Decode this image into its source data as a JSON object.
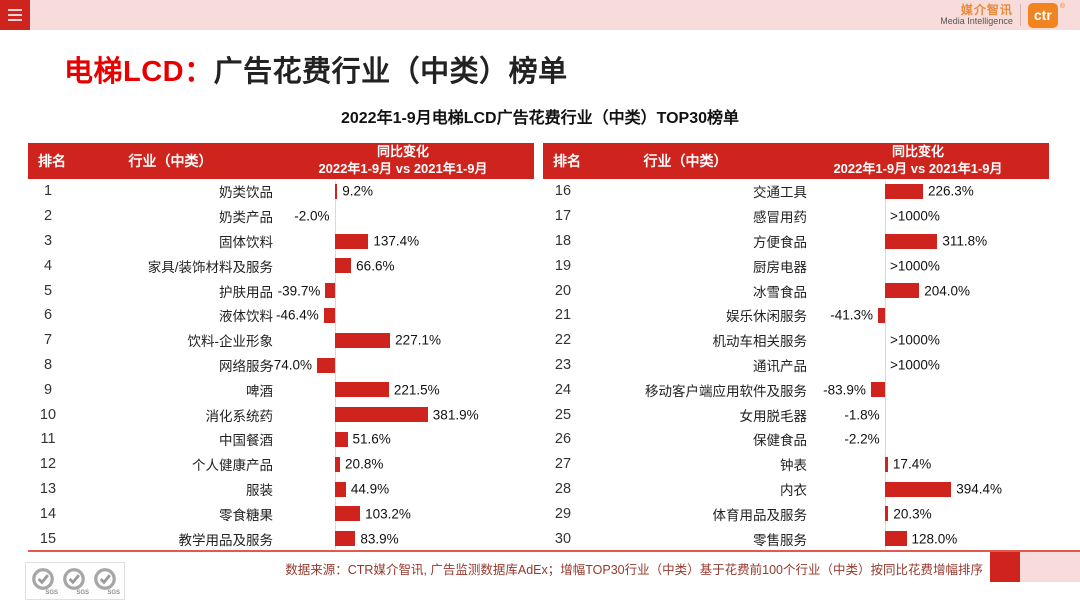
{
  "top_bar": {
    "brand_cn": "媒介智讯",
    "brand_en": "Media Intelligence",
    "brand_badge": "ctr",
    "registered": "®"
  },
  "title": {
    "highlight": "电梯LCD：",
    "main": "广告花费行业（中类）榜单"
  },
  "subtitle": "2022年1-9月电梯LCD广告花费行业（中类）TOP30榜单",
  "table_headers": {
    "rank": "排名",
    "industry": "行业（中类）",
    "change_title": "同比变化",
    "change_period": "2022年1-9月 vs 2021年1-9月"
  },
  "table": {
    "left_rows": [
      {
        "rank": "1",
        "industry": "奶类饮品",
        "label": "9.2%",
        "value": 9.2
      },
      {
        "rank": "2",
        "industry": "奶类产品",
        "label": "-2.0%",
        "value": -2.0
      },
      {
        "rank": "3",
        "industry": "固体饮料",
        "label": "137.4%",
        "value": 137.4
      },
      {
        "rank": "4",
        "industry": "家具/装饰材料及服务",
        "label": "66.6%",
        "value": 66.6
      },
      {
        "rank": "5",
        "industry": "护肤用品",
        "label": "-39.7%",
        "value": -39.7
      },
      {
        "rank": "6",
        "industry": "液体饮料",
        "label": "-46.4%",
        "value": -46.4
      },
      {
        "rank": "7",
        "industry": "饮料-企业形象",
        "label": "227.1%",
        "value": 227.1
      },
      {
        "rank": "8",
        "industry": "网络服务",
        "label": "-74.0%",
        "value": -74.0
      },
      {
        "rank": "9",
        "industry": "啤酒",
        "label": "221.5%",
        "value": 221.5
      },
      {
        "rank": "10",
        "industry": "消化系统药",
        "label": "381.9%",
        "value": 381.9
      },
      {
        "rank": "11",
        "industry": "中国餐酒",
        "label": "51.6%",
        "value": 51.6
      },
      {
        "rank": "12",
        "industry": "个人健康产品",
        "label": "20.8%",
        "value": 20.8
      },
      {
        "rank": "13",
        "industry": "服装",
        "label": "44.9%",
        "value": 44.9
      },
      {
        "rank": "14",
        "industry": "零食糖果",
        "label": "103.2%",
        "value": 103.2
      },
      {
        "rank": "15",
        "industry": "教学用品及服务",
        "label": "83.9%",
        "value": 83.9
      }
    ],
    "right_rows": [
      {
        "rank": "16",
        "industry": "交通工具",
        "label": "226.3%",
        "value": 226.3
      },
      {
        "rank": "17",
        "industry": "感冒用药",
        "label": ">1000%",
        "value": null
      },
      {
        "rank": "18",
        "industry": "方便食品",
        "label": "311.8%",
        "value": 311.8
      },
      {
        "rank": "19",
        "industry": "厨房电器",
        "label": ">1000%",
        "value": null
      },
      {
        "rank": "20",
        "industry": "冰雪食品",
        "label": "204.0%",
        "value": 204.0
      },
      {
        "rank": "21",
        "industry": "娱乐休闲服务",
        "label": "-41.3%",
        "value": -41.3
      },
      {
        "rank": "22",
        "industry": "机动车相关服务",
        "label": ">1000%",
        "value": null
      },
      {
        "rank": "23",
        "industry": "通讯产品",
        "label": ">1000%",
        "value": null
      },
      {
        "rank": "24",
        "industry": "移动客户端应用软件及服务",
        "label": "-83.9%",
        "value": -83.9
      },
      {
        "rank": "25",
        "industry": "女用脱毛器",
        "label": "-1.8%",
        "value": -1.8
      },
      {
        "rank": "26",
        "industry": "保健食品",
        "label": "-2.2%",
        "value": -2.2
      },
      {
        "rank": "27",
        "industry": "钟表",
        "label": "17.4%",
        "value": 17.4
      },
      {
        "rank": "28",
        "industry": "内衣",
        "label": "394.4%",
        "value": 394.4
      },
      {
        "rank": "29",
        "industry": "体育用品及服务",
        "label": "20.3%",
        "value": 20.3
      },
      {
        "rank": "30",
        "industry": "零售服务",
        "label": "128.0%",
        "value": 128.0
      }
    ]
  },
  "footer": {
    "source": "数据来源：CTR媒介智讯, 广告监测数据库AdEx；增幅TOP30行业（中类）基于花费前100个行业（中类）按同比花费增幅排序",
    "sgs": "SGS"
  },
  "colors": {
    "accent_red": "#cf231d",
    "topbar_pink": "#f8dcdb",
    "brand_orange": "#ef8420",
    "axis_gray": "#d9d9d9",
    "footer_text": "#96382c"
  },
  "chart_data": {
    "type": "bar",
    "orientation": "horizontal",
    "title": "2022年1-9月电梯LCD广告花费行业（中类）TOP30榜单",
    "value_axis_label": "同比变化 2022年1-9月 vs 2021年1-9月 (%)",
    "legend_position": "none",
    "grid": false,
    "ranks": [
      1,
      2,
      3,
      4,
      5,
      6,
      7,
      8,
      9,
      10,
      11,
      12,
      13,
      14,
      15,
      16,
      17,
      18,
      19,
      20,
      21,
      22,
      23,
      24,
      25,
      26,
      27,
      28,
      29,
      30
    ],
    "categories": [
      "奶类饮品",
      "奶类产品",
      "固体饮料",
      "家具/装饰材料及服务",
      "护肤用品",
      "液体饮料",
      "饮料-企业形象",
      "网络服务",
      "啤酒",
      "消化系统药",
      "中国餐酒",
      "个人健康产品",
      "服装",
      "零食糖果",
      "教学用品及服务",
      "交通工具",
      "感冒用药",
      "方便食品",
      "厨房电器",
      "冰雪食品",
      "娱乐休闲服务",
      "机动车相关服务",
      "通讯产品",
      "移动客户端应用软件及服务",
      "女用脱毛器",
      "保健食品",
      "钟表",
      "内衣",
      "体育用品及服务",
      "零售服务"
    ],
    "values": [
      9.2,
      -2.0,
      137.4,
      66.6,
      -39.7,
      -46.4,
      227.1,
      -74.0,
      221.5,
      381.9,
      51.6,
      20.8,
      44.9,
      103.2,
      83.9,
      226.3,
      null,
      311.8,
      null,
      204.0,
      -41.3,
      null,
      null,
      -83.9,
      -1.8,
      -2.2,
      17.4,
      394.4,
      20.3,
      128.0
    ],
    "value_labels": [
      "9.2%",
      "-2.0%",
      "137.4%",
      "66.6%",
      "-39.7%",
      "-46.4%",
      "227.1%",
      "-74.0%",
      "221.5%",
      "381.9%",
      "51.6%",
      "20.8%",
      "44.9%",
      "103.2%",
      "83.9%",
      "226.3%",
      ">1000%",
      "311.8%",
      ">1000%",
      "204.0%",
      "-41.3%",
      ">1000%",
      ">1000%",
      "-83.9%",
      "-1.8%",
      "-2.2%",
      "17.4%",
      "394.4%",
      "20.3%",
      "128.0%"
    ]
  }
}
